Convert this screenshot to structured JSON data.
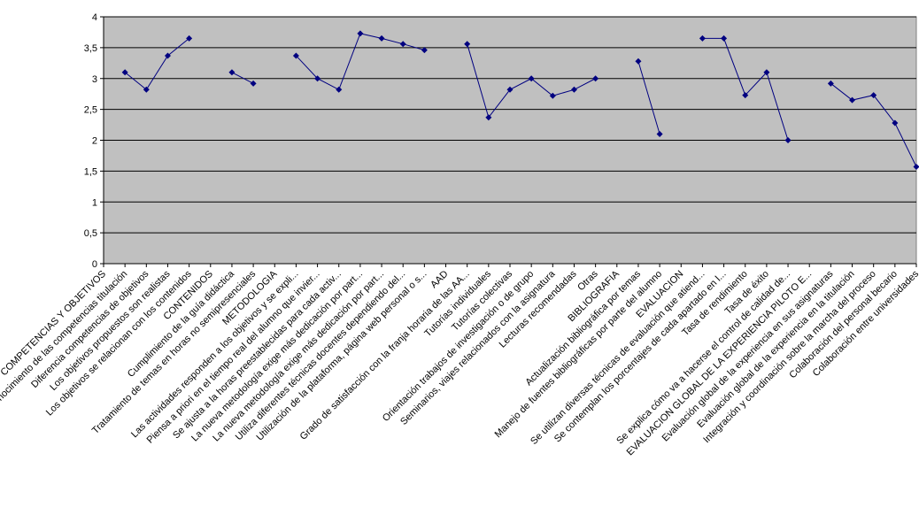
{
  "chart_data": {
    "type": "line",
    "categories": [
      "COMPETENCIAS Y OBJETIVOS",
      "Conocimiento de las competencias titulación",
      "Diferencia competencias de objetivos",
      "Los objetivos propuestos son realistas",
      "Los objetivos se relacionan con los contenidos",
      "CONTENIDOS",
      "Cumplimiento de la guía didáctica",
      "Tratamiento de temas en horas no semipresenciales",
      "METODOLOGIA",
      "Las actividades responden a los objetivos y se expli...",
      "Piensa a priori en el tiempo real del alumno que invier...",
      "Se ajusta a la horas preestablecidas para cada activ...",
      "La nueva metodología exige más dedicación por part...",
      "La nueva metodología exige más dedicación por part...",
      "Utiliza diferentes técnicas docentes dependiendo del...",
      "Utilización de la plataforma, página web personal o s...",
      "AAD",
      "Grado de satisfacción con la franja horaria de las AA...",
      "Tutorías individuales",
      "Tutorías colectivas",
      "Orientación trabajos de investigación o de grupo",
      "Seminarios, viajes relacionados con la asignatura",
      "Lecturas recomendadas",
      "Otras",
      "BIBLIOGRAFIA",
      "Actualización bibliográfica por temas",
      "Manejo de fuentes bibliográficas por parte del alumno",
      "EVALUACION",
      "Se utilizan diversas técnicas de evaluación que atiend...",
      "Se contemplan los porcentajes de cada apartado en l...",
      "Tasa de rendimiento",
      "Tasa de éxito",
      "Se explica cómo va a hacerse el control de calidad de...",
      "EVALUACION GLOBAL DE LA EXPERIENCIA PILOTO E...",
      "Evaluación global de la experiencia en sus asignaturas",
      "Evaluación global de la experiencia en la titulación",
      "Integración y coordinación sobre la marcha del proceso",
      "Colaboración del personal becario",
      "Colaboración entre universidades"
    ],
    "series": [
      {
        "color": "#000080",
        "values": [
          null,
          3.1,
          2.82,
          3.37,
          3.65,
          null,
          3.1,
          2.92,
          null,
          3.37,
          3.0,
          2.82,
          3.73,
          3.65,
          3.56,
          3.46,
          null,
          3.56,
          2.37,
          2.82,
          3.0,
          2.72,
          2.82,
          3.0,
          null,
          3.28,
          2.1,
          null,
          3.65,
          3.65,
          2.73,
          3.1,
          2.0,
          null,
          2.92,
          2.65,
          2.73,
          2.28,
          1.57
        ]
      }
    ],
    "ylim": [
      0,
      4
    ],
    "yticks": [
      0,
      {
        "value": 0.5,
        "label": "0,5"
      },
      1,
      {
        "value": 1.5,
        "label": "1,5"
      },
      2,
      {
        "value": 2.5,
        "label": "2,5"
      },
      3,
      {
        "value": 3.5,
        "label": "3,5"
      },
      4
    ],
    "grid": true,
    "plot_background": "#c0c0c0"
  }
}
